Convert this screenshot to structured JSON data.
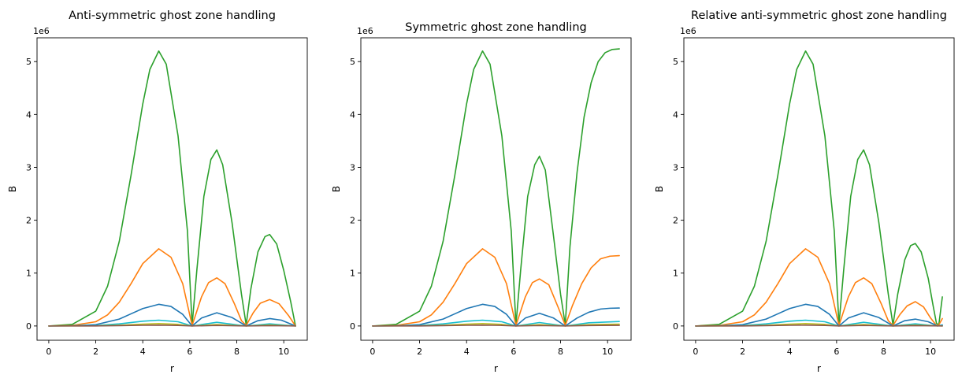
{
  "figure": {
    "background": "#ffffff"
  },
  "chart_data": [
    {
      "type": "line",
      "title": "Anti-symmetric ghost zone handling",
      "xlabel": "r",
      "ylabel": "B",
      "offset_text": "1e6",
      "xlim": [
        -0.5,
        11.0
      ],
      "ylim": [
        -0.27,
        5.45
      ],
      "xticks": [
        0,
        2,
        4,
        6,
        8,
        10
      ],
      "yticks": [
        0,
        1,
        2,
        3,
        4,
        5
      ],
      "grid": false,
      "legend": "none",
      "series": [
        {
          "color": "#2ca02c",
          "x": [
            0,
            1,
            2,
            2.5,
            3,
            3.5,
            4,
            4.3,
            4.68,
            5.0,
            5.5,
            5.9,
            6.1,
            6.3,
            6.6,
            6.9,
            7.15,
            7.4,
            7.8,
            8.2,
            8.4,
            8.6,
            8.9,
            9.2,
            9.4,
            9.7,
            10.0,
            10.3,
            10.5
          ],
          "y": [
            0,
            0.03,
            0.28,
            0.75,
            1.6,
            2.85,
            4.2,
            4.85,
            5.2,
            4.95,
            3.6,
            1.8,
            0.02,
            1.05,
            2.45,
            3.15,
            3.33,
            3.05,
            1.95,
            0.6,
            0.02,
            0.7,
            1.4,
            1.69,
            1.73,
            1.55,
            1.05,
            0.45,
            0.0
          ]
        },
        {
          "color": "#ff7f0e",
          "x": [
            0,
            1,
            2,
            2.5,
            3,
            3.5,
            4,
            4.68,
            5.2,
            5.7,
            6.1,
            6.5,
            6.8,
            7.15,
            7.5,
            7.9,
            8.2,
            8.4,
            8.7,
            9.0,
            9.4,
            9.8,
            10.2,
            10.5
          ],
          "y": [
            0,
            0.01,
            0.08,
            0.21,
            0.45,
            0.8,
            1.18,
            1.46,
            1.3,
            0.8,
            0.01,
            0.55,
            0.82,
            0.91,
            0.8,
            0.42,
            0.1,
            0.01,
            0.25,
            0.43,
            0.5,
            0.42,
            0.2,
            0.0
          ]
        },
        {
          "color": "#1f77b4",
          "x": [
            0,
            1,
            2,
            3,
            3.5,
            4,
            4.68,
            5.2,
            5.7,
            6.1,
            6.5,
            7.15,
            7.8,
            8.4,
            8.9,
            9.4,
            9.9,
            10.5
          ],
          "y": [
            0,
            0.003,
            0.025,
            0.13,
            0.23,
            0.33,
            0.41,
            0.37,
            0.22,
            0.0,
            0.15,
            0.25,
            0.16,
            0.0,
            0.1,
            0.14,
            0.11,
            0.0
          ]
        },
        {
          "color": "#17becf",
          "x": [
            0,
            2,
            3,
            4,
            4.68,
            5.5,
            6.1,
            7.15,
            8.4,
            9.4,
            10.5
          ],
          "y": [
            0,
            0.008,
            0.04,
            0.09,
            0.11,
            0.08,
            0.0,
            0.07,
            0.0,
            0.04,
            0.0
          ]
        },
        {
          "color": "#bcbd22",
          "x": [
            0,
            2,
            3,
            4,
            4.68,
            5.5,
            6.1,
            7.15,
            8.4,
            9.4,
            10.5
          ],
          "y": [
            0,
            0.003,
            0.015,
            0.035,
            0.045,
            0.03,
            0.0,
            0.028,
            0.0,
            0.018,
            0.0
          ]
        },
        {
          "color": "#8c564b",
          "x": [
            0,
            2,
            3,
            4,
            4.68,
            5.5,
            6.1,
            7.15,
            8.4,
            9.4,
            10.5
          ],
          "y": [
            0,
            0.001,
            0.006,
            0.013,
            0.016,
            0.011,
            0.0,
            0.01,
            0.0,
            0.006,
            0.0
          ]
        }
      ]
    },
    {
      "type": "line",
      "title": "Symmetric ghost zone handling",
      "xlabel": "r",
      "ylabel": "B",
      "offset_text": "1e6",
      "xlim": [
        -0.5,
        11.0
      ],
      "ylim": [
        -0.27,
        5.45
      ],
      "xticks": [
        0,
        2,
        4,
        6,
        8,
        10
      ],
      "yticks": [
        0,
        1,
        2,
        3,
        4,
        5
      ],
      "grid": false,
      "legend": "none",
      "series": [
        {
          "color": "#2ca02c",
          "x": [
            0,
            1,
            2,
            2.5,
            3,
            3.5,
            4,
            4.3,
            4.68,
            5.0,
            5.5,
            5.9,
            6.1,
            6.3,
            6.6,
            6.9,
            7.1,
            7.35,
            7.7,
            8.0,
            8.2,
            8.4,
            8.7,
            9.0,
            9.3,
            9.6,
            9.9,
            10.2,
            10.5
          ],
          "y": [
            0,
            0.03,
            0.28,
            0.75,
            1.6,
            2.85,
            4.2,
            4.85,
            5.2,
            4.95,
            3.6,
            1.8,
            0.02,
            1.05,
            2.45,
            3.05,
            3.21,
            2.95,
            1.7,
            0.6,
            0.02,
            1.5,
            2.9,
            3.95,
            4.6,
            5.0,
            5.17,
            5.23,
            5.24
          ]
        },
        {
          "color": "#ff7f0e",
          "x": [
            0,
            1,
            2,
            2.5,
            3,
            3.5,
            4,
            4.68,
            5.2,
            5.7,
            6.1,
            6.5,
            6.8,
            7.1,
            7.5,
            7.9,
            8.2,
            8.5,
            8.9,
            9.3,
            9.7,
            10.1,
            10.5
          ],
          "y": [
            0,
            0.01,
            0.08,
            0.21,
            0.45,
            0.8,
            1.18,
            1.46,
            1.3,
            0.8,
            0.01,
            0.55,
            0.82,
            0.89,
            0.78,
            0.35,
            0.01,
            0.38,
            0.8,
            1.1,
            1.27,
            1.32,
            1.33
          ]
        },
        {
          "color": "#1f77b4",
          "x": [
            0,
            1,
            2,
            3,
            3.5,
            4,
            4.68,
            5.2,
            5.7,
            6.1,
            6.5,
            7.1,
            7.7,
            8.2,
            8.7,
            9.2,
            9.7,
            10.1,
            10.5
          ],
          "y": [
            0,
            0.003,
            0.025,
            0.13,
            0.23,
            0.33,
            0.41,
            0.37,
            0.22,
            0.0,
            0.15,
            0.24,
            0.15,
            0.0,
            0.15,
            0.26,
            0.32,
            0.335,
            0.34
          ]
        },
        {
          "color": "#17becf",
          "x": [
            0,
            2,
            3,
            4,
            4.68,
            5.5,
            6.1,
            7.1,
            8.2,
            9.2,
            10.5
          ],
          "y": [
            0,
            0.008,
            0.04,
            0.09,
            0.11,
            0.08,
            0.0,
            0.065,
            0.0,
            0.06,
            0.085
          ]
        },
        {
          "color": "#bcbd22",
          "x": [
            0,
            2,
            3,
            4,
            4.68,
            5.5,
            6.1,
            7.1,
            8.2,
            9.2,
            10.5
          ],
          "y": [
            0,
            0.003,
            0.015,
            0.035,
            0.045,
            0.03,
            0.0,
            0.026,
            0.0,
            0.025,
            0.034
          ]
        },
        {
          "color": "#8c564b",
          "x": [
            0,
            2,
            3,
            4,
            4.68,
            5.5,
            6.1,
            7.1,
            8.2,
            9.2,
            10.5
          ],
          "y": [
            0,
            0.001,
            0.006,
            0.013,
            0.016,
            0.011,
            0.0,
            0.009,
            0.0,
            0.009,
            0.012
          ]
        }
      ]
    },
    {
      "type": "line",
      "title": "Relative anti-symmetric ghost zone handling",
      "xlabel": "r",
      "ylabel": "B",
      "offset_text": "1e6",
      "xlim": [
        -0.5,
        11.0
      ],
      "ylim": [
        -0.27,
        5.45
      ],
      "xticks": [
        0,
        2,
        4,
        6,
        8,
        10
      ],
      "yticks": [
        0,
        1,
        2,
        3,
        4,
        5
      ],
      "grid": false,
      "legend": "none",
      "series": [
        {
          "color": "#2ca02c",
          "x": [
            0,
            1,
            2,
            2.5,
            3,
            3.5,
            4,
            4.3,
            4.68,
            5.0,
            5.5,
            5.9,
            6.1,
            6.3,
            6.6,
            6.9,
            7.15,
            7.4,
            7.8,
            8.2,
            8.4,
            8.6,
            8.9,
            9.15,
            9.35,
            9.6,
            9.9,
            10.1,
            10.25,
            10.35,
            10.5
          ],
          "y": [
            0,
            0.03,
            0.28,
            0.75,
            1.6,
            2.85,
            4.2,
            4.85,
            5.2,
            4.95,
            3.6,
            1.8,
            0.02,
            1.05,
            2.45,
            3.15,
            3.33,
            3.05,
            1.95,
            0.6,
            0.02,
            0.6,
            1.25,
            1.52,
            1.56,
            1.4,
            0.9,
            0.4,
            0.05,
            0.02,
            0.55
          ]
        },
        {
          "color": "#ff7f0e",
          "x": [
            0,
            1,
            2,
            2.5,
            3,
            3.5,
            4,
            4.68,
            5.2,
            5.7,
            6.1,
            6.5,
            6.8,
            7.15,
            7.5,
            7.9,
            8.2,
            8.4,
            8.7,
            9.0,
            9.35,
            9.7,
            10.0,
            10.25,
            10.35,
            10.5
          ],
          "y": [
            0,
            0.01,
            0.08,
            0.21,
            0.45,
            0.8,
            1.18,
            1.46,
            1.3,
            0.8,
            0.01,
            0.55,
            0.82,
            0.91,
            0.8,
            0.42,
            0.1,
            0.01,
            0.22,
            0.38,
            0.46,
            0.36,
            0.15,
            0.01,
            0.02,
            0.14
          ]
        },
        {
          "color": "#1f77b4",
          "x": [
            0,
            1,
            2,
            3,
            3.5,
            4,
            4.68,
            5.2,
            5.7,
            6.1,
            6.5,
            7.15,
            7.8,
            8.4,
            8.9,
            9.35,
            9.9,
            10.3,
            10.5
          ],
          "y": [
            0,
            0.003,
            0.025,
            0.13,
            0.23,
            0.33,
            0.41,
            0.37,
            0.22,
            0.0,
            0.15,
            0.25,
            0.16,
            0.0,
            0.1,
            0.13,
            0.08,
            0.0,
            0.02
          ]
        },
        {
          "color": "#17becf",
          "x": [
            0,
            2,
            3,
            4,
            4.68,
            5.5,
            6.1,
            7.15,
            8.4,
            9.35,
            10.3,
            10.5
          ],
          "y": [
            0,
            0.008,
            0.04,
            0.09,
            0.11,
            0.08,
            0.0,
            0.07,
            0.0,
            0.04,
            0.0,
            0.01
          ]
        },
        {
          "color": "#bcbd22",
          "x": [
            0,
            2,
            3,
            4,
            4.68,
            5.5,
            6.1,
            7.15,
            8.4,
            9.35,
            10.5
          ],
          "y": [
            0,
            0.003,
            0.015,
            0.035,
            0.045,
            0.03,
            0.0,
            0.028,
            0.0,
            0.016,
            0.0
          ]
        },
        {
          "color": "#8c564b",
          "x": [
            0,
            2,
            3,
            4,
            4.68,
            5.5,
            6.1,
            7.15,
            8.4,
            9.35,
            10.5
          ],
          "y": [
            0,
            0.001,
            0.006,
            0.013,
            0.016,
            0.011,
            0.0,
            0.01,
            0.0,
            0.006,
            0.0
          ]
        }
      ]
    }
  ]
}
